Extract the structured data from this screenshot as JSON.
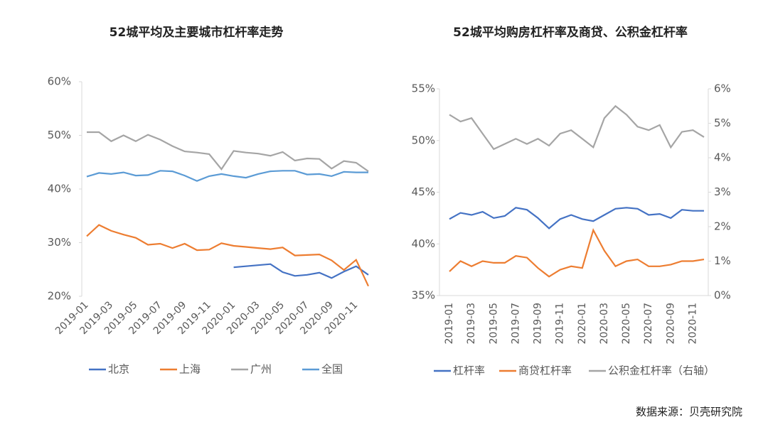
{
  "chart_data": [
    {
      "type": "line",
      "title": "52城平均及主要城市杠杆率走势",
      "categories": [
        "2019-01",
        null,
        "2019-03",
        null,
        "2019-05",
        null,
        "2019-07",
        null,
        "2019-09",
        null,
        "2019-11",
        null,
        "2020-01",
        null,
        "2020-03",
        null,
        "2020-05",
        null,
        "2020-07",
        null,
        "2020-09",
        null,
        "2020-11",
        null
      ],
      "ylim": [
        20,
        60
      ],
      "yticks": [
        {
          "value": 20,
          "label": "20%"
        },
        {
          "value": 30,
          "label": "30%"
        },
        {
          "value": 40,
          "label": "40%"
        },
        {
          "value": 50,
          "label": "50%"
        },
        {
          "value": 60,
          "label": "60%"
        }
      ],
      "series": [
        {
          "name": "北京",
          "color": "#4472c4",
          "values": [
            null,
            null,
            null,
            null,
            null,
            null,
            null,
            null,
            null,
            null,
            null,
            null,
            25.4,
            25.6,
            25.8,
            26.0,
            24.5,
            23.8,
            24.0,
            24.4,
            23.4,
            24.6,
            25.6,
            24.0
          ]
        },
        {
          "name": "上海",
          "color": "#ed7d31",
          "values": [
            31.2,
            33.3,
            32.2,
            31.5,
            30.9,
            29.6,
            29.8,
            29.0,
            29.8,
            28.6,
            28.7,
            29.9,
            29.4,
            29.2,
            29.0,
            28.8,
            29.1,
            27.6,
            27.7,
            27.8,
            26.7,
            24.9,
            26.8,
            21.9
          ]
        },
        {
          "name": "广州",
          "color": "#a5a5a5",
          "values": [
            50.6,
            50.6,
            48.9,
            50.0,
            48.9,
            50.1,
            49.2,
            48.0,
            47.0,
            46.8,
            46.5,
            43.7,
            47.1,
            46.8,
            46.6,
            46.2,
            46.9,
            45.3,
            45.7,
            45.6,
            43.8,
            45.2,
            44.9,
            43.3
          ]
        },
        {
          "name": "全国",
          "color": "#5b9bd5",
          "values": [
            42.3,
            43.0,
            42.8,
            43.1,
            42.5,
            42.6,
            43.4,
            43.3,
            42.5,
            41.5,
            42.4,
            42.8,
            42.4,
            42.1,
            42.8,
            43.3,
            43.4,
            43.4,
            42.7,
            42.8,
            42.4,
            43.2,
            43.1,
            43.1
          ]
        }
      ]
    },
    {
      "type": "line",
      "title": "52城平均购房杠杆率及商贷、公积金杠杆率",
      "categories": [
        "2019-01",
        null,
        "2019-03",
        null,
        "2019-05",
        null,
        "2019-07",
        null,
        "2019-09",
        null,
        "2019-11",
        null,
        "2020-01",
        null,
        "2020-03",
        null,
        "2020-05",
        null,
        "2020-07",
        null,
        "2020-09",
        null,
        "2020-11",
        null
      ],
      "ylim": [
        35,
        55
      ],
      "yticks": [
        {
          "value": 35,
          "label": "35%"
        },
        {
          "value": 40,
          "label": "40%"
        },
        {
          "value": 45,
          "label": "45%"
        },
        {
          "value": 50,
          "label": "50%"
        },
        {
          "value": 55,
          "label": "55%"
        }
      ],
      "y2lim": [
        0,
        6
      ],
      "y2ticks": [
        {
          "value": 0,
          "label": "0%"
        },
        {
          "value": 1,
          "label": "1%"
        },
        {
          "value": 2,
          "label": "2%"
        },
        {
          "value": 3,
          "label": "3%"
        },
        {
          "value": 4,
          "label": "4%"
        },
        {
          "value": 5,
          "label": "5%"
        },
        {
          "value": 6,
          "label": "6%"
        }
      ],
      "series": [
        {
          "name": "杠杆率",
          "color": "#4472c4",
          "values": [
            42.4,
            43.0,
            42.8,
            43.1,
            42.5,
            42.7,
            43.5,
            43.3,
            42.5,
            41.5,
            42.4,
            42.8,
            42.4,
            42.2,
            42.8,
            43.4,
            43.5,
            43.4,
            42.8,
            42.9,
            42.5,
            43.3,
            43.2,
            43.2
          ]
        },
        {
          "name": "商贷杠杆率",
          "color": "#ed7d31",
          "axis": "y2",
          "values": [
            0.7,
            1.0,
            0.85,
            1.0,
            0.95,
            0.95,
            1.15,
            1.1,
            0.8,
            0.55,
            0.75,
            0.85,
            0.8,
            1.9,
            1.3,
            0.85,
            1.0,
            1.05,
            0.85,
            0.85,
            0.9,
            1.0,
            1.0,
            1.05
          ]
        },
        {
          "name": "公积金杠杆率（右轴）",
          "color": "#a5a5a5",
          "axis": "y2",
          "values": [
            5.25,
            5.05,
            5.15,
            4.7,
            4.25,
            4.4,
            4.55,
            4.4,
            4.55,
            4.35,
            4.7,
            4.8,
            4.55,
            4.3,
            5.15,
            5.5,
            5.25,
            4.9,
            4.8,
            4.95,
            4.3,
            4.75,
            4.8,
            4.6
          ]
        }
      ]
    }
  ],
  "source": "数据来源：贝壳研究院"
}
